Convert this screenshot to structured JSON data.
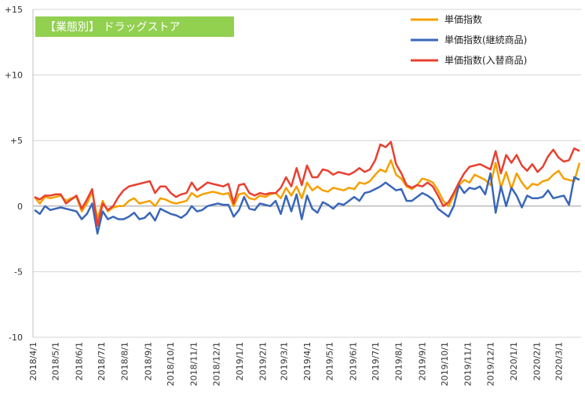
{
  "chart_data": {
    "type": "line",
    "title": "【業態別】 ドラッグストア",
    "title_color": "#92d050",
    "ylim": [
      -10,
      15
    ],
    "y_ticks": [
      {
        "value": 15,
        "label": "+15"
      },
      {
        "value": 10,
        "label": "+10"
      },
      {
        "value": 5,
        "label": "+5"
      },
      {
        "value": 0,
        "label": "0"
      },
      {
        "value": -5,
        "label": "-5"
      },
      {
        "value": -10,
        "label": "-10"
      }
    ],
    "x_tick_labels": [
      "2018/4/1",
      "2018/5/1",
      "2018/6/1",
      "2018/7/1",
      "2018/8/1",
      "2018/9/1",
      "2018/10/1",
      "2018/11/1",
      "2018/12/1",
      "2019/1/1",
      "2019/2/1",
      "2019/3/1",
      "2019/4/1",
      "2019/5/1",
      "2019/6/1",
      "2019/7/1",
      "2019/8/1",
      "2019/9/1",
      "2019/10/1",
      "2019/11/1",
      "2019/12/1",
      "2020/1/1",
      "2020/2/1",
      "2020/3/1"
    ],
    "gridlines": "horizontal",
    "legend_position": "top-right",
    "x_start": "2018-04-01",
    "x_end": "2020-03-31",
    "series": [
      {
        "name": "単価指数",
        "color": "#f5a000",
        "values": [
          0.7,
          0.2,
          0.7,
          0.6,
          0.7,
          0.8,
          0.4,
          0.6,
          0.7,
          -0.4,
          0.2,
          1.1,
          -1.0,
          0.4,
          -0.4,
          -0.1,
          0.0,
          0.0,
          0.4,
          0.6,
          0.2,
          0.3,
          0.4,
          0.0,
          0.6,
          0.5,
          0.3,
          0.2,
          0.3,
          0.4,
          1.0,
          0.7,
          0.9,
          1.0,
          1.1,
          1.0,
          0.9,
          1.0,
          0.0,
          0.9,
          1.0,
          0.6,
          0.5,
          0.8,
          0.7,
          0.9,
          1.0,
          0.6,
          1.4,
          0.8,
          1.5,
          0.6,
          1.8,
          1.2,
          1.5,
          1.2,
          1.1,
          1.4,
          1.3,
          1.2,
          1.4,
          1.3,
          1.8,
          1.7,
          1.9,
          2.4,
          2.8,
          2.6,
          3.5,
          2.4,
          2.1,
          1.5,
          1.3,
          1.6,
          2.1,
          2.0,
          1.8,
          1.2,
          0.4,
          0.0,
          0.8,
          1.6,
          2.0,
          1.8,
          2.4,
          2.2,
          2.0,
          1.6,
          3.3,
          1.4,
          2.6,
          1.3,
          2.5,
          1.8,
          1.3,
          1.7,
          1.6,
          1.9,
          2.0,
          2.4,
          2.7,
          2.1,
          2.0,
          1.9,
          3.3
        ]
      },
      {
        "name": "単価指数(継続商品)",
        "color": "#3a67b8",
        "values": [
          -0.3,
          -0.6,
          0.0,
          -0.3,
          -0.2,
          -0.1,
          -0.2,
          -0.3,
          -0.4,
          -1.0,
          -0.6,
          0.2,
          -2.1,
          -0.4,
          -1.0,
          -0.8,
          -1.0,
          -1.0,
          -0.8,
          -0.5,
          -1.0,
          -0.9,
          -0.5,
          -1.1,
          -0.2,
          -0.4,
          -0.6,
          -0.7,
          -0.9,
          -0.6,
          0.0,
          -0.4,
          -0.3,
          0.0,
          0.1,
          0.2,
          0.1,
          0.1,
          -0.8,
          -0.3,
          0.7,
          -0.2,
          -0.3,
          0.2,
          0.1,
          0.0,
          0.4,
          -0.6,
          0.8,
          -0.4,
          0.9,
          -1.0,
          0.8,
          -0.2,
          -0.5,
          0.3,
          0.1,
          -0.2,
          0.2,
          0.1,
          0.4,
          0.7,
          0.4,
          1.0,
          1.1,
          1.3,
          1.5,
          1.8,
          1.5,
          1.2,
          1.3,
          0.4,
          0.4,
          0.7,
          1.0,
          0.8,
          0.5,
          -0.2,
          -0.5,
          -0.8,
          0.0,
          1.6,
          1.0,
          1.4,
          1.3,
          1.5,
          0.9,
          2.5,
          -0.5,
          1.5,
          0.0,
          1.4,
          0.8,
          -0.1,
          0.8,
          0.6,
          0.6,
          0.7,
          1.2,
          0.6,
          0.7,
          0.8,
          0.1,
          2.2,
          2.0
        ]
      },
      {
        "name": "単価指数(入替商品)",
        "color": "#e84030",
        "values": [
          0.7,
          0.5,
          0.8,
          0.8,
          0.9,
          0.9,
          0.2,
          0.5,
          0.8,
          -0.2,
          0.5,
          1.3,
          -1.5,
          0.2,
          -0.3,
          0.0,
          0.7,
          1.2,
          1.5,
          1.6,
          1.7,
          1.8,
          1.9,
          1.0,
          1.5,
          1.5,
          1.0,
          0.7,
          0.9,
          1.0,
          1.8,
          1.2,
          1.5,
          1.8,
          1.7,
          1.6,
          1.5,
          1.7,
          0.2,
          1.6,
          1.7,
          1.0,
          0.8,
          1.0,
          0.9,
          1.0,
          1.0,
          1.4,
          2.2,
          1.5,
          2.9,
          1.6,
          3.1,
          2.2,
          2.2,
          2.8,
          2.7,
          2.4,
          2.6,
          2.5,
          2.4,
          2.6,
          2.9,
          2.6,
          2.8,
          3.5,
          4.7,
          4.5,
          4.9,
          3.2,
          2.5,
          1.6,
          1.4,
          1.6,
          1.5,
          1.8,
          1.5,
          0.8,
          0.0,
          0.3,
          1.0,
          1.8,
          2.5,
          3.0,
          3.1,
          3.2,
          3.0,
          2.8,
          4.2,
          2.5,
          3.9,
          3.3,
          3.9,
          3.1,
          2.7,
          3.2,
          2.6,
          3.0,
          3.8,
          4.3,
          3.7,
          3.4,
          3.5,
          4.4,
          4.2
        ]
      }
    ]
  }
}
